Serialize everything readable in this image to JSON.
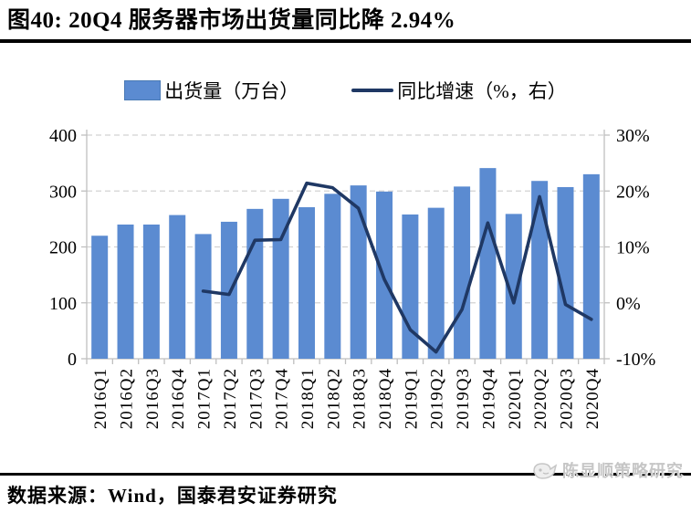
{
  "title": "图40: 20Q4 服务器市场出货量同比降 2.94%",
  "legend": {
    "items": [
      {
        "label": "出货量（万台）",
        "marker": "bar-swatch",
        "color": "#5b8bd1"
      },
      {
        "label": "同比增速（%，右）",
        "marker": "line-swatch",
        "color": "#1f3864"
      }
    ]
  },
  "footer": {
    "source": "数据来源：Wind，国泰君安证券研究",
    "watermark": "陈显顺策略研究"
  },
  "colors": {
    "bar": "#5b8bd1",
    "line": "#1f3864",
    "grid": "#d2d2d2",
    "axis": "#bfbfbf",
    "text": "#000000",
    "watermark": "#c6c6c6"
  },
  "chart_data": {
    "type": "bar+line combo",
    "title": "20Q4 服务器市场出货量同比降 2.94%",
    "categories": [
      "2016Q1",
      "2016Q2",
      "2016Q3",
      "2016Q4",
      "2017Q1",
      "2017Q2",
      "2017Q3",
      "2017Q4",
      "2018Q1",
      "2018Q2",
      "2018Q3",
      "2018Q4",
      "2019Q1",
      "2019Q2",
      "2019Q3",
      "2019Q4",
      "2020Q1",
      "2020Q2",
      "2020Q3",
      "2020Q4"
    ],
    "series": [
      {
        "name": "出货量（万台）",
        "type": "bar",
        "axis": "left",
        "color": "#5b8bd1",
        "values": [
          220,
          240,
          240,
          257,
          223,
          245,
          268,
          286,
          271,
          295,
          310,
          299,
          258,
          270,
          308,
          341,
          259,
          318,
          307,
          330
        ]
      },
      {
        "name": "同比增速（%，右）",
        "type": "line",
        "axis": "right",
        "color": "#1f3864",
        "values": [
          null,
          null,
          null,
          null,
          2.1,
          1.5,
          11.2,
          11.3,
          21.4,
          20.6,
          16.9,
          4.2,
          -4.8,
          -8.8,
          -1.2,
          14.3,
          0.0,
          19.0,
          -0.3,
          -2.94
        ]
      }
    ],
    "left_axis": {
      "min": 0,
      "max": 400,
      "tick_values": [
        0,
        100,
        200,
        300,
        400
      ],
      "tick_labels": [
        "0",
        "100",
        "200",
        "300",
        "400"
      ]
    },
    "right_axis": {
      "min": -10,
      "max": 30,
      "tick_values": [
        -10,
        0,
        10,
        20,
        30
      ],
      "tick_labels": [
        "-10%",
        "0%",
        "10%",
        "20%",
        "30%"
      ]
    },
    "grid": true,
    "grid_style": "dashed",
    "legend_position": "top",
    "x_label_rotation": -90
  }
}
